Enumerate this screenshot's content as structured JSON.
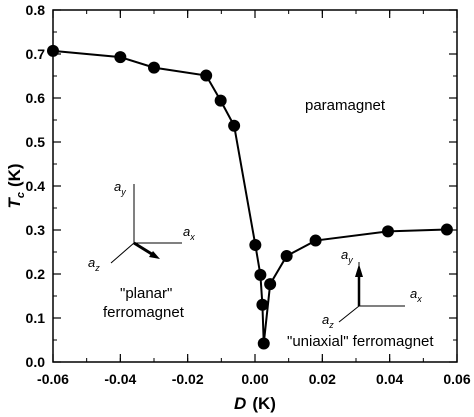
{
  "chart_data": {
    "type": "line",
    "xlabel": {
      "main": "D",
      "unit": "(K)"
    },
    "ylabel": {
      "main": "T",
      "sub": "c",
      "unit": "(K)"
    },
    "xlim": [
      -0.06,
      0.06
    ],
    "ylim": [
      0.0,
      0.8
    ],
    "x_ticks": [
      -0.06,
      -0.04,
      -0.02,
      0.0,
      0.02,
      0.04,
      0.06
    ],
    "x_tick_labels": [
      "-0.06",
      "-0.04",
      "-0.02",
      "0.00",
      "0.02",
      "0.04",
      "0.06"
    ],
    "y_ticks": [
      0.0,
      0.1,
      0.2,
      0.3,
      0.4,
      0.5,
      0.6,
      0.7,
      0.8
    ],
    "y_tick_labels": [
      "0.0",
      "0.1",
      "0.2",
      "0.3",
      "0.4",
      "0.5",
      "0.6",
      "0.7",
      "0.8"
    ],
    "grid": false,
    "series": [
      {
        "marker": "filled-circle",
        "color": "#000000",
        "x": [
          -0.06,
          -0.04,
          -0.03,
          -0.0145,
          -0.0102,
          -0.0062,
          0.0001,
          0.0016,
          0.0022,
          0.0026,
          0.0045,
          0.0094,
          0.018,
          0.0395,
          0.057
        ],
        "y": [
          0.707,
          0.693,
          0.669,
          0.651,
          0.594,
          0.537,
          0.266,
          0.198,
          0.13,
          0.042,
          0.177,
          0.241,
          0.276,
          0.297,
          0.301
        ]
      }
    ]
  },
  "annotations": {
    "paramagnet": "paramagnet",
    "planar": [
      "\"planar\"",
      "ferromagnet"
    ],
    "uniaxial": "\"uniaxial\" ferromagnet",
    "axis_symbols": {
      "ax": {
        "main": "a",
        "sub": "x"
      },
      "ay": {
        "main": "a",
        "sub": "y"
      },
      "az": {
        "main": "a",
        "sub": "z"
      }
    }
  }
}
